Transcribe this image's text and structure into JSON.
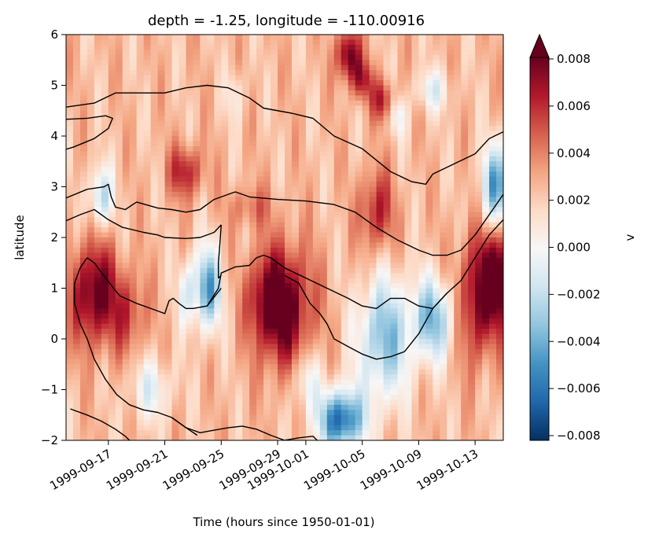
{
  "chart_data": {
    "type": "heatmap",
    "title": "depth = -1.25, longitude = -110.00916",
    "xlabel": "Time (hours since 1950-01-01)",
    "ylabel": "latitude",
    "colorbar_label": "v",
    "x_range": [
      "1999-09-14",
      "1999-10-15"
    ],
    "ylim": [
      -2,
      6
    ],
    "color_range": [
      -0.008,
      0.008
    ],
    "colormap": "RdBu_r",
    "colorbar_extend": "max",
    "x_ticks": [
      "1999-09-17",
      "1999-09-21",
      "1999-09-25",
      "1999-09-29",
      "1999-10-01",
      "1999-10-05",
      "1999-10-09",
      "1999-10-13"
    ],
    "y_ticks": [
      "6",
      "5",
      "4",
      "3",
      "2",
      "1",
      "0",
      "−1",
      "−2"
    ],
    "colorbar_ticks": [
      "0.008",
      "0.006",
      "0.004",
      "0.002",
      "0.000",
      "−0.002",
      "−0.004",
      "−0.006",
      "−0.008"
    ],
    "contour_color": "#000000"
  }
}
